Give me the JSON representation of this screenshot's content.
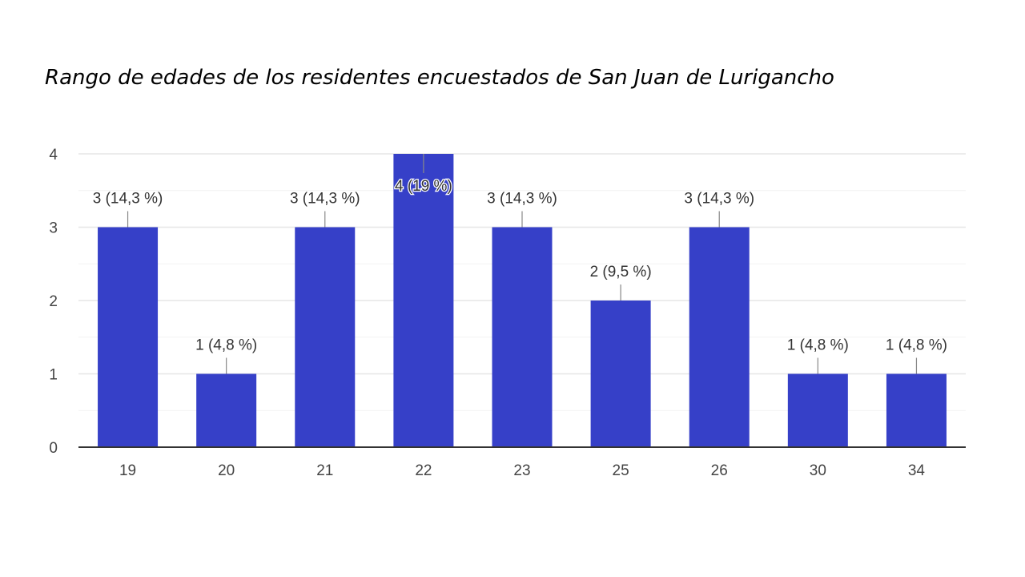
{
  "chart_data": {
    "type": "bar",
    "title": "Rango de edades de los residentes encuestados de San Juan de Lurigancho",
    "xlabel": "",
    "ylabel": "",
    "categories": [
      "19",
      "20",
      "21",
      "22",
      "23",
      "25",
      "26",
      "30",
      "34"
    ],
    "values": [
      3,
      1,
      3,
      4,
      3,
      2,
      3,
      1,
      1
    ],
    "data_labels": [
      "3 (14,3 %)",
      "1 (4,8 %)",
      "3 (14,3 %)",
      "4 (19 %)",
      "3 (14,3 %)",
      "2 (9,5 %)",
      "3 (14,3 %)",
      "1 (4,8 %)",
      "1 (4,8 %)"
    ],
    "yticks": [
      0,
      1,
      2,
      3,
      4
    ],
    "ylim": [
      0,
      4
    ],
    "grid": true,
    "legend": "none",
    "colors": {
      "bar": "#3640c8",
      "grid": "#e6e6e6",
      "axis": "#333333"
    }
  }
}
